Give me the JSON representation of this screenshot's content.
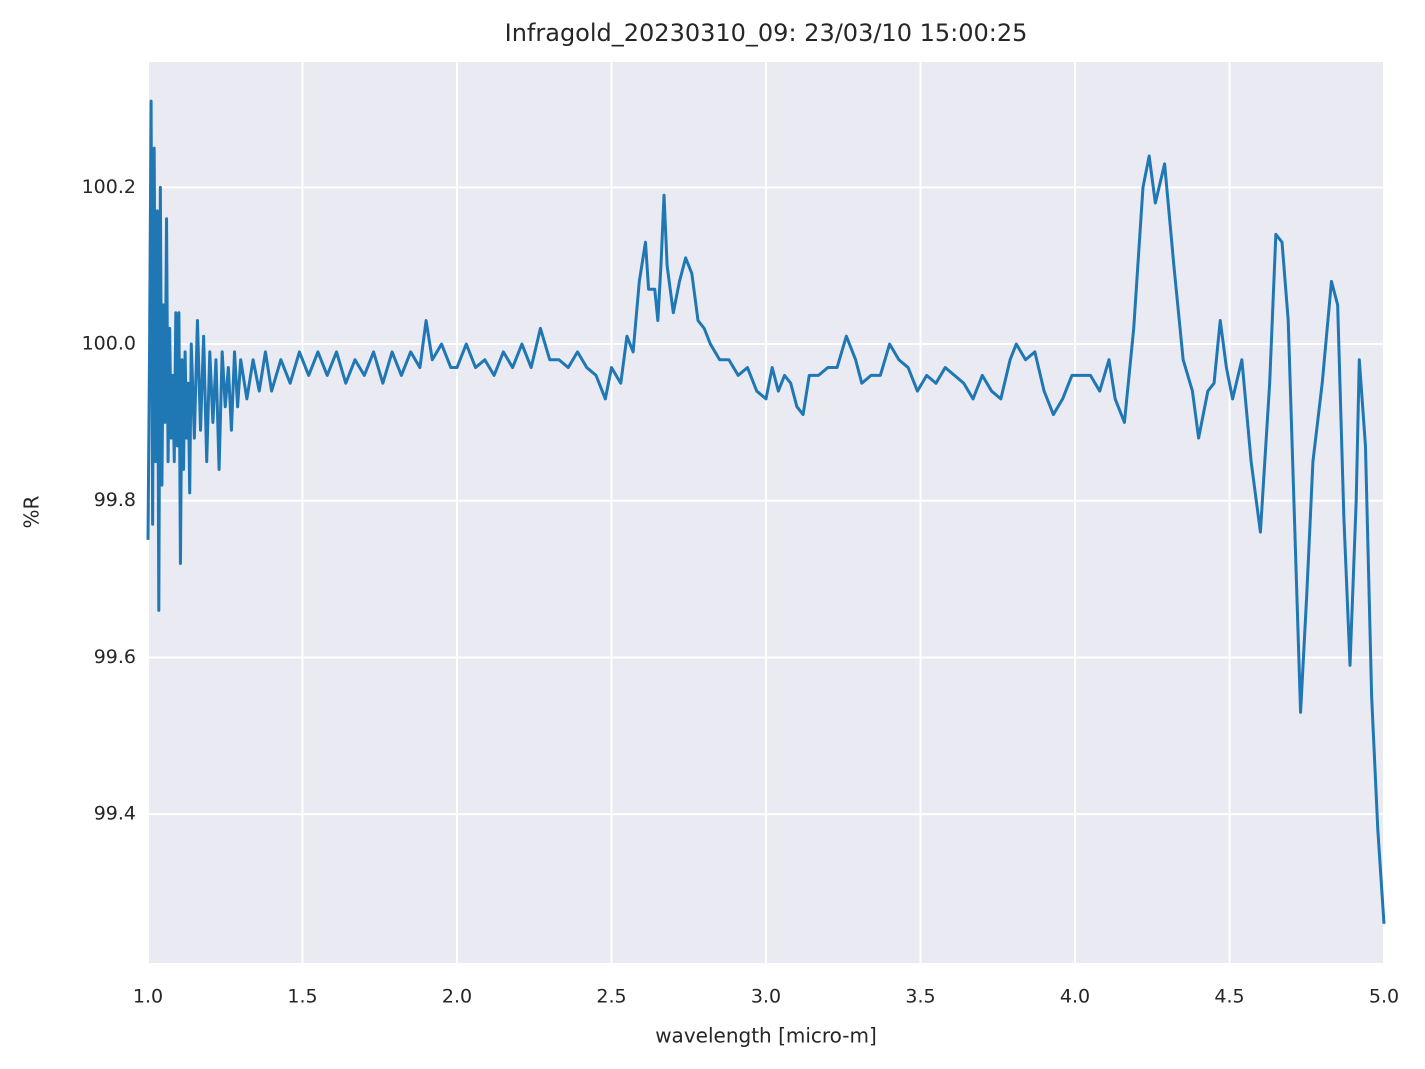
{
  "chart_data": {
    "type": "line",
    "title": "Infragold_20230310_09:  23/03/10 15:00:25",
    "xlabel": "wavelength [micro-m]",
    "ylabel": "%R",
    "color": "#1f77b4",
    "grid": true,
    "xlim": [
      1.0,
      5.0
    ],
    "ylim": [
      99.21,
      100.36
    ],
    "xticks": [
      {
        "value": 1.0,
        "label": "1.0"
      },
      1.5,
      {
        "value": 2.0,
        "label": "2.0"
      },
      2.5,
      {
        "value": 3.0,
        "label": "3.0"
      },
      3.5,
      {
        "value": 4.0,
        "label": "4.0"
      },
      4.5,
      {
        "value": 5.0,
        "label": "5.0"
      }
    ],
    "yticks": [
      99.4,
      99.6,
      99.8,
      {
        "value": 100.0,
        "label": "100.0"
      },
      100.2
    ],
    "x": [
      1.0,
      1.005,
      1.01,
      1.015,
      1.02,
      1.025,
      1.03,
      1.035,
      1.04,
      1.045,
      1.05,
      1.055,
      1.06,
      1.065,
      1.07,
      1.075,
      1.08,
      1.085,
      1.09,
      1.095,
      1.1,
      1.105,
      1.11,
      1.115,
      1.12,
      1.125,
      1.13,
      1.135,
      1.14,
      1.15,
      1.16,
      1.17,
      1.18,
      1.19,
      1.2,
      1.21,
      1.22,
      1.23,
      1.24,
      1.25,
      1.26,
      1.27,
      1.28,
      1.29,
      1.3,
      1.32,
      1.34,
      1.36,
      1.38,
      1.4,
      1.43,
      1.46,
      1.49,
      1.52,
      1.55,
      1.58,
      1.61,
      1.64,
      1.67,
      1.7,
      1.73,
      1.76,
      1.79,
      1.82,
      1.85,
      1.88,
      1.9,
      1.92,
      1.95,
      1.98,
      2.0,
      2.03,
      2.06,
      2.09,
      2.12,
      2.15,
      2.18,
      2.21,
      2.24,
      2.27,
      2.3,
      2.33,
      2.36,
      2.39,
      2.42,
      2.45,
      2.48,
      2.5,
      2.53,
      2.55,
      2.57,
      2.59,
      2.61,
      2.62,
      2.64,
      2.65,
      2.66,
      2.67,
      2.68,
      2.7,
      2.72,
      2.74,
      2.76,
      2.78,
      2.8,
      2.82,
      2.85,
      2.88,
      2.91,
      2.94,
      2.97,
      3.0,
      3.02,
      3.04,
      3.06,
      3.08,
      3.1,
      3.12,
      3.14,
      3.17,
      3.2,
      3.23,
      3.26,
      3.29,
      3.31,
      3.34,
      3.37,
      3.4,
      3.43,
      3.46,
      3.49,
      3.52,
      3.55,
      3.58,
      3.61,
      3.64,
      3.67,
      3.7,
      3.73,
      3.76,
      3.79,
      3.81,
      3.84,
      3.87,
      3.9,
      3.93,
      3.96,
      3.99,
      4.02,
      4.05,
      4.08,
      4.11,
      4.13,
      4.16,
      4.19,
      4.22,
      4.24,
      4.26,
      4.29,
      4.32,
      4.35,
      4.38,
      4.4,
      4.43,
      4.45,
      4.47,
      4.49,
      4.51,
      4.54,
      4.57,
      4.6,
      4.63,
      4.65,
      4.67,
      4.69,
      4.71,
      4.73,
      4.75,
      4.77,
      4.8,
      4.83,
      4.85,
      4.87,
      4.89,
      4.91,
      4.92,
      4.94,
      4.96,
      4.98,
      5.0
    ],
    "values": [
      99.75,
      99.99,
      100.31,
      99.77,
      100.25,
      99.85,
      100.17,
      99.66,
      100.2,
      99.82,
      100.05,
      99.9,
      100.16,
      99.85,
      100.02,
      99.88,
      99.96,
      99.85,
      100.04,
      99.87,
      100.04,
      99.72,
      99.98,
      99.84,
      99.99,
      99.88,
      99.95,
      99.81,
      100.0,
      99.88,
      100.03,
      99.89,
      100.01,
      99.85,
      99.99,
      99.9,
      99.98,
      99.84,
      99.99,
      99.92,
      99.97,
      99.89,
      99.99,
      99.92,
      99.98,
      99.93,
      99.98,
      99.94,
      99.99,
      99.94,
      99.98,
      99.95,
      99.99,
      99.96,
      99.99,
      99.96,
      99.99,
      99.95,
      99.98,
      99.96,
      99.99,
      99.95,
      99.99,
      99.96,
      99.99,
      99.97,
      100.03,
      99.98,
      100.0,
      99.97,
      99.97,
      100.0,
      99.97,
      99.98,
      99.96,
      99.99,
      99.97,
      100.0,
      99.97,
      100.02,
      99.98,
      99.98,
      99.97,
      99.99,
      99.97,
      99.96,
      99.93,
      99.97,
      99.95,
      100.01,
      99.99,
      100.08,
      100.13,
      100.07,
      100.07,
      100.03,
      100.1,
      100.19,
      100.1,
      100.04,
      100.08,
      100.11,
      100.09,
      100.03,
      100.02,
      100.0,
      99.98,
      99.98,
      99.96,
      99.97,
      99.94,
      99.93,
      99.97,
      99.94,
      99.96,
      99.95,
      99.92,
      99.91,
      99.96,
      99.96,
      99.97,
      99.97,
      100.01,
      99.98,
      99.95,
      99.96,
      99.96,
      100.0,
      99.98,
      99.97,
      99.94,
      99.96,
      99.95,
      99.97,
      99.96,
      99.95,
      99.93,
      99.96,
      99.94,
      99.93,
      99.98,
      100.0,
      99.98,
      99.99,
      99.94,
      99.91,
      99.93,
      99.96,
      99.96,
      99.96,
      99.94,
      99.98,
      99.93,
      99.9,
      100.02,
      100.2,
      100.24,
      100.18,
      100.23,
      100.1,
      99.98,
      99.94,
      99.88,
      99.94,
      99.95,
      100.03,
      99.97,
      99.93,
      99.98,
      99.85,
      99.76,
      99.95,
      100.14,
      100.13,
      100.03,
      99.78,
      99.53,
      99.68,
      99.85,
      99.95,
      100.08,
      100.05,
      99.78,
      99.59,
      99.8,
      99.98,
      99.87,
      99.55,
      99.38,
      99.26
    ]
  }
}
